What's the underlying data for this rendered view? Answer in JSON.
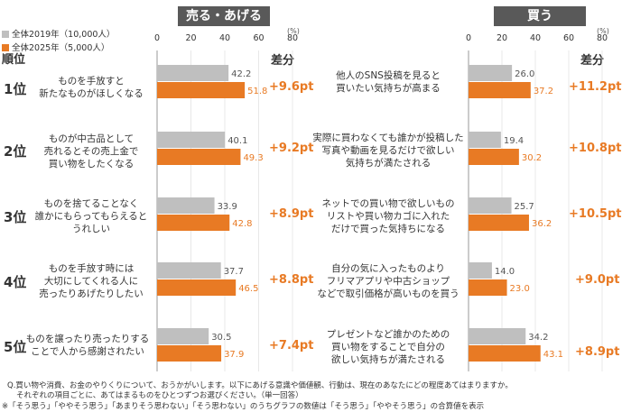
{
  "legend": {
    "items": [
      {
        "label": "全体2019年（10,000人）",
        "color": "#bfbfbf"
      },
      {
        "label": "全体2025年（5,000人）",
        "color": "#e87a24"
      }
    ]
  },
  "headers": {
    "rank": "順位",
    "diff": "差分",
    "unit": "(%)"
  },
  "chart_data": [
    {
      "type": "bar",
      "title": "売る・あげる",
      "xlim": [
        0,
        80
      ],
      "ticks": [
        0,
        20,
        40,
        60,
        80
      ],
      "unit": "(%)",
      "categories": [
        "ものを手放すと新たなものがほしくなる",
        "ものが中古品として売れるとその売上金で買い物をしたくなる",
        "ものを捨てることなく誰かにもらってもらえるとうれしい",
        "ものを手放す時には大切にしてくれる人に売ったりあげたりしたい",
        "ものを譲ったり売ったりすることで人から感謝されたい"
      ],
      "series": [
        {
          "name": "全体2019年（10,000人）",
          "values": [
            42.2,
            40.1,
            33.9,
            37.7,
            30.5
          ]
        },
        {
          "name": "全体2025年（5,000人）",
          "values": [
            51.8,
            49.3,
            42.8,
            46.5,
            37.9
          ]
        }
      ],
      "ranks": [
        "1位",
        "2位",
        "3位",
        "4位",
        "5位"
      ],
      "diffs": [
        "+9.6pt",
        "+9.2pt",
        "+8.9pt",
        "+8.8pt",
        "+7.4pt"
      ],
      "label_lines": [
        [
          "ものを手放すと",
          "新たなものがほしくなる"
        ],
        [
          "ものが中古品として",
          "売れるとその売上金で",
          "買い物をしたくなる"
        ],
        [
          "ものを捨てることなく",
          "誰かにもらってもらえると",
          "うれしい"
        ],
        [
          "ものを手放す時には",
          "大切にしてくれる人に",
          "売ったりあげたりしたい"
        ],
        [
          "ものを譲ったり売ったりする",
          "ことで人から感謝されたい"
        ]
      ]
    },
    {
      "type": "bar",
      "title": "買う",
      "xlim": [
        0,
        80
      ],
      "ticks": [
        0,
        20,
        40,
        60,
        80
      ],
      "unit": "(%)",
      "categories": [
        "他人のSNS投稿を見ると買いたい気持ちが高まる",
        "実際に買わなくても誰かが投稿した写真や動画を見るだけで欲しい気持ちが満たされる",
        "ネットでの買い物で欲しいものリストや買い物カゴに入れただけで買った気持ちになる",
        "自分の気に入ったものよりフリマアプリや中古ショップなどで取引価格が高いものを買う",
        "プレゼントなど誰かのための買い物をすることで自分の欲しい気持ちが満たされる"
      ],
      "series": [
        {
          "name": "全体2019年（10,000人）",
          "values": [
            26.0,
            19.4,
            25.7,
            14.0,
            34.2
          ]
        },
        {
          "name": "全体2025年（5,000人）",
          "values": [
            37.2,
            30.2,
            36.2,
            23.0,
            43.1
          ]
        }
      ],
      "diffs": [
        "+11.2pt",
        "+10.8pt",
        "+10.5pt",
        "+9.0pt",
        "+8.9pt"
      ],
      "label_lines": [
        [
          "他人のSNS投稿を見ると",
          "買いたい気持ちが高まる"
        ],
        [
          "実際に買わなくても誰かが投稿した",
          "写真や動画を見るだけで欲しい",
          "気持ちが満たされる"
        ],
        [
          "ネットでの買い物で欲しいもの",
          "リストや買い物カゴに入れた",
          "だけで買った気持ちになる"
        ],
        [
          "自分の気に入ったものより",
          "フリマアプリや中古ショップ",
          "などで取引価格が高いものを買う"
        ],
        [
          "プレゼントなど誰かのための",
          "買い物をすることで自分の",
          "欲しい気持ちが満たされる"
        ]
      ]
    }
  ],
  "notes": [
    "Q.買い物や消費、お金のやりくりについて、おうかがいします。以下にあげる意識や価値観、行動は、現在のあなたにどの程度あてはまりますか。",
    "それぞれの項目ごとに、あてはまるものをひとつずつお選びください。（単一回答）",
    "※「そう思う」「ややそう思う」「あまりそう思わない」「そう思わない」のうちグラフの数値は「そう思う」「ややそう思う」の合算値を表示"
  ]
}
